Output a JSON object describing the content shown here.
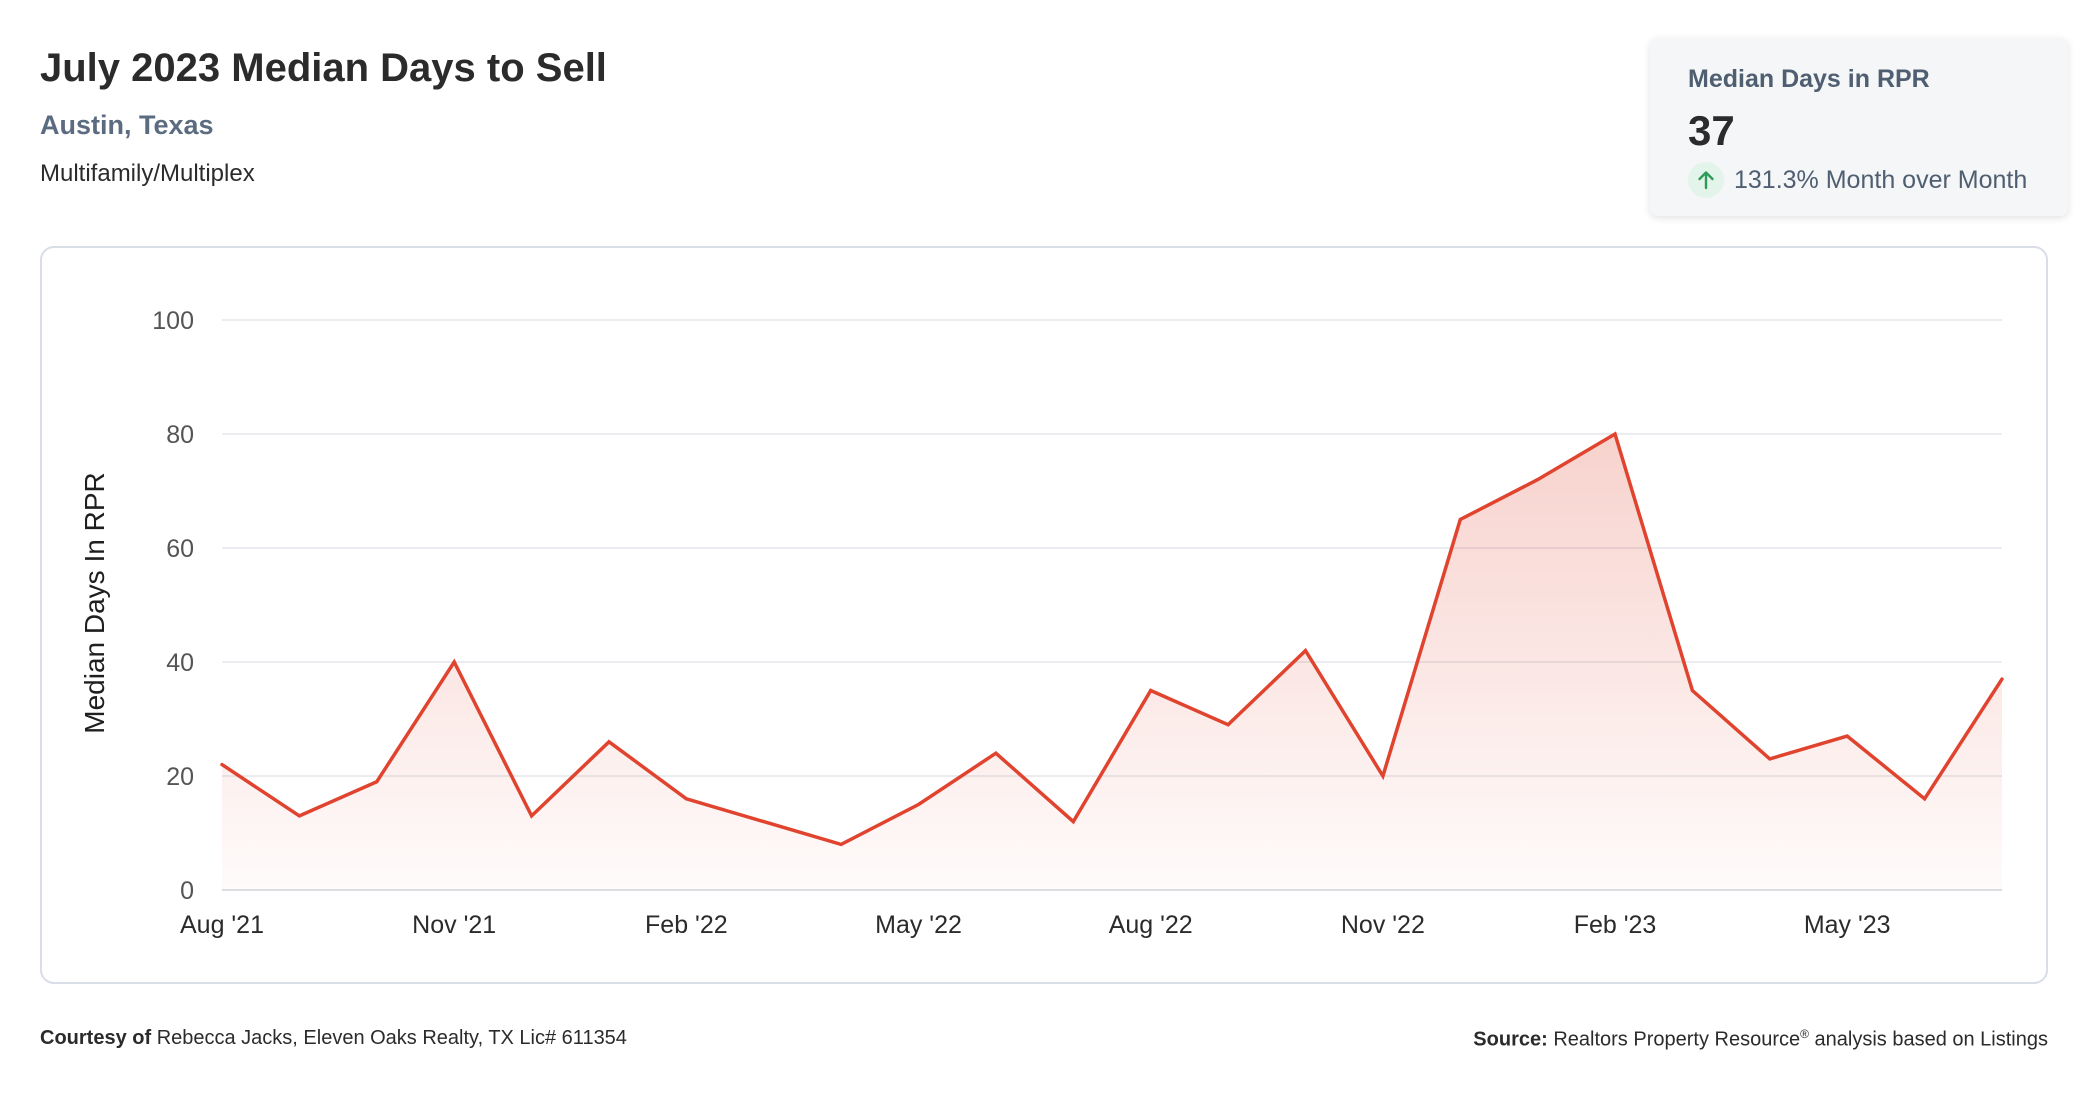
{
  "header": {
    "title": "July 2023 Median Days to Sell",
    "location": "Austin, Texas",
    "property_type": "Multifamily/Multiplex"
  },
  "stat_card": {
    "label": "Median Days in RPR",
    "value": "37",
    "change": "131.3% Month over Month",
    "change_icon": "arrow-up-icon",
    "change_direction": "up"
  },
  "chart_data": {
    "type": "area",
    "ylabel": "Median Days In RPR",
    "xlabel": "",
    "ylim": [
      0,
      100
    ],
    "yticks": [
      0,
      20,
      40,
      60,
      80,
      100
    ],
    "grid": true,
    "legend": "none",
    "x": [
      "2021-08",
      "2021-09",
      "2021-10",
      "2021-11",
      "2021-12",
      "2022-01",
      "2022-02",
      "2022-03",
      "2022-04",
      "2022-05",
      "2022-06",
      "2022-07",
      "2022-08",
      "2022-09",
      "2022-10",
      "2022-11",
      "2022-12",
      "2023-01",
      "2023-02",
      "2023-03",
      "2023-04",
      "2023-05",
      "2023-06",
      "2023-07"
    ],
    "xtick_labels": [
      {
        "label": "Aug '21",
        "x": "2021-08"
      },
      {
        "label": "Nov '21",
        "x": "2021-11"
      },
      {
        "label": "Feb '22",
        "x": "2022-02"
      },
      {
        "label": "May '22",
        "x": "2022-05"
      },
      {
        "label": "Aug '22",
        "x": "2022-08"
      },
      {
        "label": "Nov '22",
        "x": "2022-11"
      },
      {
        "label": "Feb '23",
        "x": "2023-02"
      },
      {
        "label": "May '23",
        "x": "2023-05"
      }
    ],
    "series": [
      {
        "values": [
          22,
          13,
          19,
          40,
          13,
          26,
          16,
          12,
          8,
          15,
          24,
          12,
          35,
          29,
          42,
          20,
          65,
          72,
          80,
          35,
          23,
          27,
          16,
          37
        ],
        "color": "#e0442f"
      }
    ]
  },
  "footer": {
    "courtesy_label": "Courtesy of",
    "courtesy_text": "Rebecca Jacks, Eleven Oaks Realty, TX Lic# 611354",
    "source_label": "Source:",
    "source_text_1": "Realtors Property Resource",
    "source_sup": "®",
    "source_text_2": "analysis based on Listings"
  }
}
